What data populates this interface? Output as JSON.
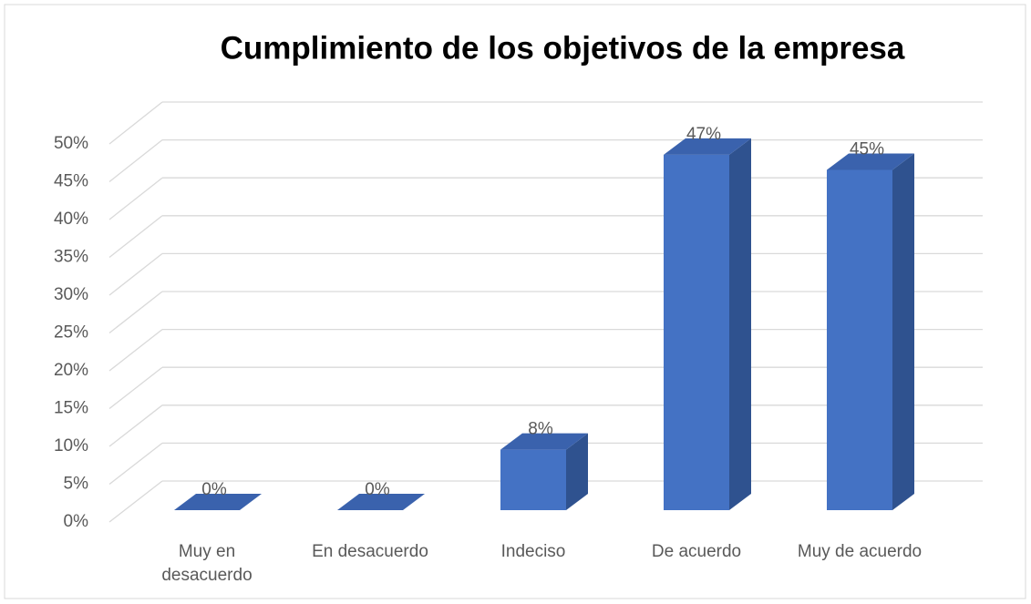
{
  "chart_data": {
    "type": "bar3d",
    "title": "Cumplimiento de los objetivos de la empresa",
    "categories": [
      "Muy en desacuerdo",
      "En desacuerdo",
      "Indeciso",
      "De acuerdo",
      "Muy de acuerdo"
    ],
    "values": [
      0,
      0,
      8,
      47,
      45
    ],
    "value_labels": [
      "0%",
      "0%",
      "8%",
      "47%",
      "45%"
    ],
    "color": "#4472c4",
    "ylim": [
      0,
      50
    ],
    "yticks": [
      {
        "value": 0,
        "label": "0%"
      },
      {
        "value": 5,
        "label": "5%"
      },
      {
        "value": 10,
        "label": "10%"
      },
      {
        "value": 15,
        "label": "15%"
      },
      {
        "value": 20,
        "label": "20%"
      },
      {
        "value": 25,
        "label": "25%"
      },
      {
        "value": 30,
        "label": "30%"
      },
      {
        "value": 35,
        "label": "35%"
      },
      {
        "value": 40,
        "label": "40%"
      },
      {
        "value": 45,
        "label": "45%"
      },
      {
        "value": 50,
        "label": "50%"
      }
    ],
    "grid": true
  }
}
